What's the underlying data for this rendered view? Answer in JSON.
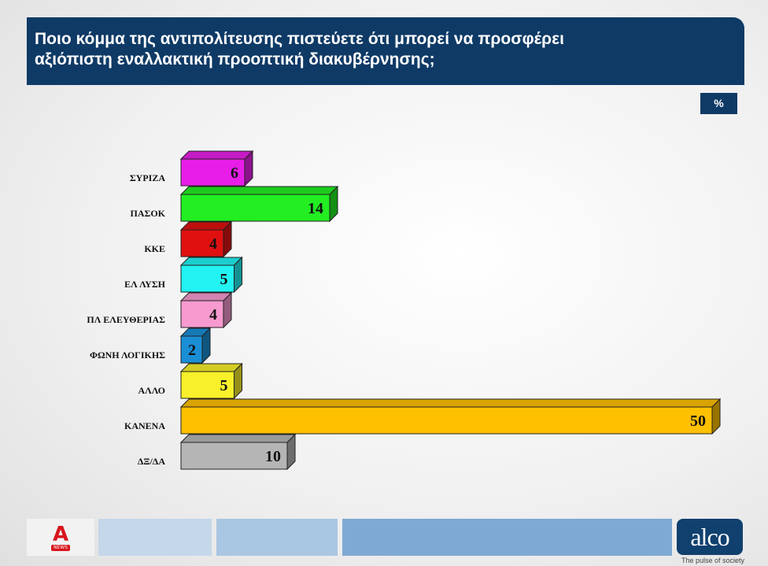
{
  "header": {
    "title_line1": "Ποιο κόμμα της αντιπολίτευσης πιστεύετε ότι μπορεί να προσφέρει",
    "title_line2": "αξιόπιστη εναλλακτική προοπτική διακυβέρνησης;"
  },
  "unit_badge": "%",
  "chart_data": {
    "type": "bar",
    "orientation": "horizontal",
    "title": "Ποιο κόμμα της αντιπολίτευσης πιστεύετε ότι μπορεί να προσφέρει αξιόπιστη εναλλακτική προοπτική διακυβέρνησης;",
    "unit": "%",
    "categories": [
      "ΣΥΡΙΖΑ",
      "ΠΑΣΟΚ",
      "ΚΚΕ",
      "ΕΛ ΛΥΣΗ",
      "ΠΛ ΕΛΕΥΘΕΡΙΑΣ",
      "ΦΩΝΗ ΛΟΓΙΚΗΣ",
      "ΑΛΛΟ",
      "ΚΑΝΕΝΑ",
      "ΔΞ/ΔΑ"
    ],
    "values": [
      6,
      14,
      4,
      5,
      4,
      2,
      5,
      50,
      10
    ],
    "colors": [
      "#e81ee8",
      "#22ee22",
      "#e01010",
      "#22f2f2",
      "#f79ad0",
      "#1a8fd6",
      "#f8f02a",
      "#ffc000",
      "#b5b5b5"
    ],
    "xlim": [
      0,
      50
    ],
    "grid": false,
    "legend": "none"
  },
  "footer": {
    "brand_logo": "ALPHA",
    "brand_sub": "NEWS",
    "pollster": "alco",
    "tagline": "The pulse of society",
    "bar_colors": [
      "#c5d7ea",
      "#a9c6e2",
      "#7ea9d4"
    ]
  }
}
